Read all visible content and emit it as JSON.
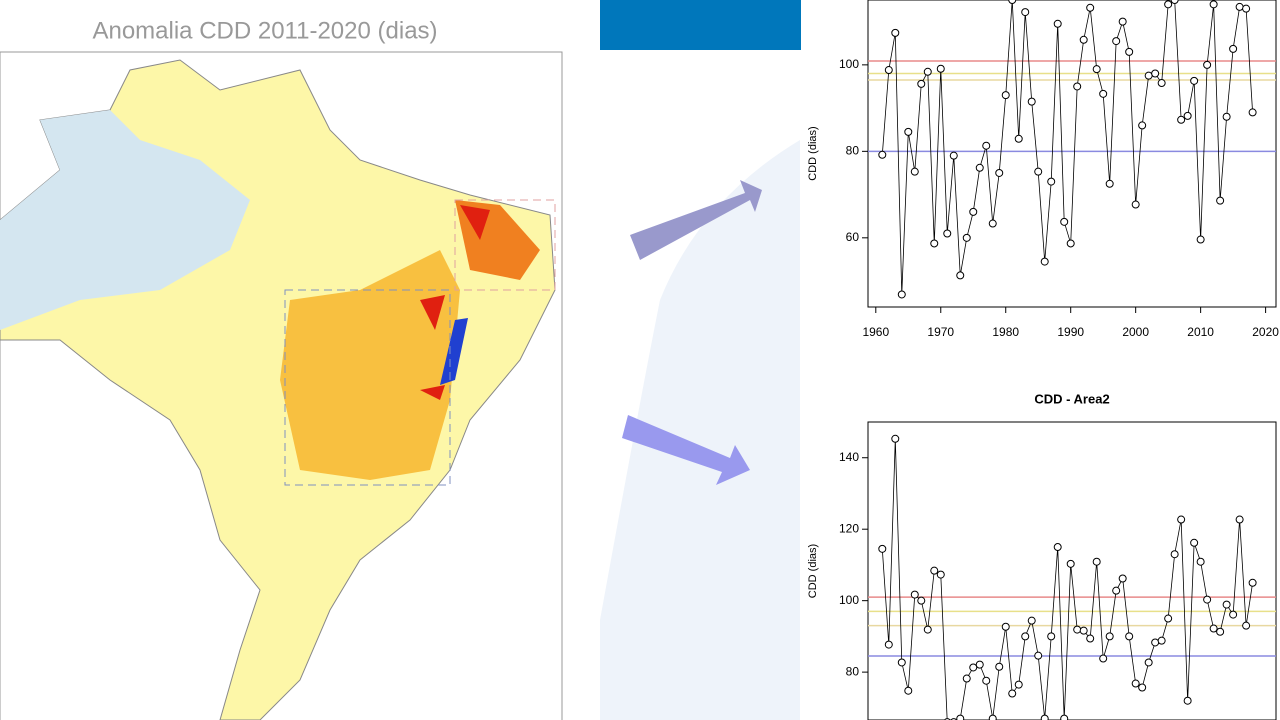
{
  "chart_data": [
    {
      "type": "map",
      "title": "Anomalia CDD 2011-2020 (dias)"
    },
    {
      "type": "line",
      "ylabel": "CDD (dias)",
      "x": [
        1961,
        1962,
        1963,
        1964,
        1965,
        1966,
        1967,
        1968,
        1969,
        1970,
        1971,
        1972,
        1973,
        1974,
        1975,
        1976,
        1977,
        1978,
        1979,
        1980,
        1981,
        1982,
        1983,
        1984,
        1985,
        1986,
        1987,
        1988,
        1989,
        1990,
        1991,
        1992,
        1993,
        1994,
        1995,
        1996,
        1997,
        1998,
        1999,
        2000,
        2001,
        2002,
        2003,
        2004,
        2005,
        2006,
        2007,
        2008,
        2009,
        2010,
        2011,
        2012,
        2013,
        2014,
        2015,
        2016,
        2017,
        2018
      ],
      "series": [
        {
          "color": "#000000",
          "values": [
            79.2,
            98.8,
            107.4,
            46.9,
            84.5,
            75.3,
            95.6,
            98.4,
            58.7,
            99.1,
            61,
            79,
            51.3,
            60,
            66,
            76.2,
            81.3,
            63.3,
            75,
            93,
            115,
            82.9,
            112.2,
            91.5,
            75.3,
            54.5,
            73,
            109.5,
            63.7,
            58.7,
            95,
            105.8,
            113.2,
            99,
            93.3,
            72.5,
            105.5,
            110,
            103,
            67.7,
            86,
            97.5,
            98,
            95.8,
            114,
            115,
            87.3,
            88.2,
            96.3,
            59.6,
            100,
            114,
            68.6,
            88,
            103.7,
            113.4,
            113,
            89
          ]
        }
      ],
      "reference_lines": [
        {
          "value": 100.9,
          "color": "#e88a8a"
        },
        {
          "value": 98,
          "color": "#e8e08a"
        },
        {
          "value": 96.5,
          "color": "#e8d8a0"
        },
        {
          "value": 80,
          "color": "#8a8ae0"
        }
      ],
      "xlim": [
        1958.8,
        2021.6
      ],
      "xticks": [
        1960,
        1970,
        1980,
        1990,
        2000,
        2010,
        2020
      ],
      "ylim": [
        44,
        115
      ],
      "yticks": [
        60,
        80,
        100
      ]
    },
    {
      "type": "line",
      "title": "CDD - Area2",
      "ylabel": "CDD (dias)",
      "x": [
        1961,
        1962,
        1963,
        1964,
        1965,
        1966,
        1967,
        1968,
        1969,
        1970,
        1971,
        1972,
        1973,
        1974,
        1975,
        1976,
        1977,
        1978,
        1979,
        1980,
        1981,
        1982,
        1983,
        1984,
        1985,
        1986,
        1987,
        1988,
        1989,
        1990,
        1991,
        1992,
        1993,
        1994,
        1995,
        1996,
        1997,
        1998,
        1999,
        2000,
        2001,
        2002,
        2003,
        2004,
        2005,
        2006,
        2007,
        2008,
        2009,
        2010,
        2011,
        2012,
        2013,
        2014,
        2015,
        2016,
        2017,
        2018
      ],
      "series": [
        {
          "color": "#000000",
          "values": [
            114.5,
            87.7,
            145.3,
            82.7,
            74.8,
            101.7,
            100,
            91.9,
            108.4,
            107.3,
            66,
            66,
            67,
            78.2,
            81.3,
            82.1,
            77.6,
            67,
            81.5,
            92.7,
            74,
            76.5,
            90,
            94.4,
            84.6,
            67,
            90,
            115,
            67,
            110.3,
            91.9,
            91.6,
            89.4,
            110.9,
            83.8,
            90,
            102.8,
            106.2,
            90,
            76.8,
            75.7,
            82.7,
            88.3,
            88.8,
            95,
            113,
            122.7,
            72,
            116.2,
            110.9,
            100.3,
            92.2,
            91.3,
            98.9,
            96.1,
            122.7,
            93,
            105
          ]
        }
      ],
      "reference_lines": [
        {
          "value": 101,
          "color": "#e88a8a"
        },
        {
          "value": 97,
          "color": "#e8e08a"
        },
        {
          "value": 93,
          "color": "#e8d8a0"
        },
        {
          "value": 84.5,
          "color": "#8a8ae0"
        }
      ],
      "xlim": [
        1958.8,
        2021.6
      ],
      "ylim": [
        66.6,
        150
      ],
      "yticks": [
        80,
        100,
        120,
        140
      ]
    }
  ]
}
